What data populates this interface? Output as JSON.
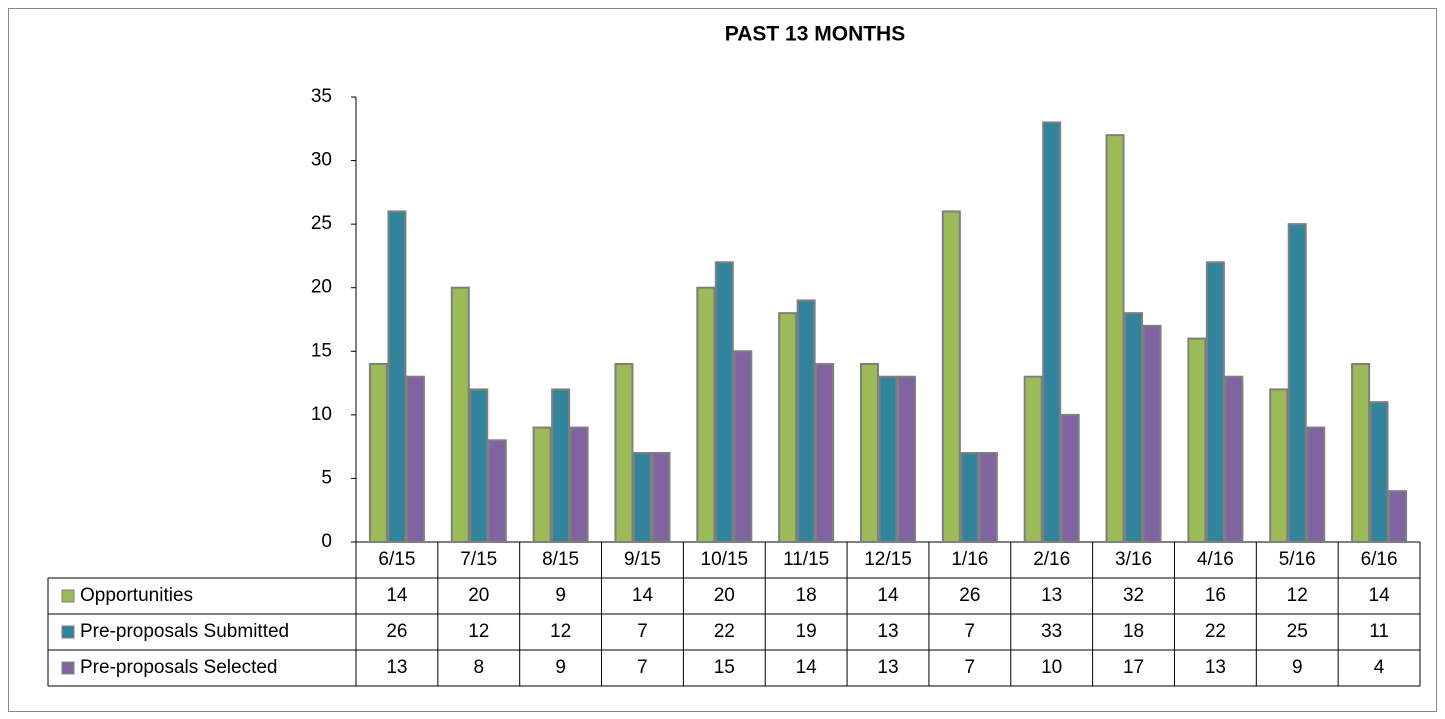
{
  "chart_data": {
    "type": "bar",
    "title": "PAST 13 MONTHS",
    "categories": [
      "6/15",
      "7/15",
      "8/15",
      "9/15",
      "10/15",
      "11/15",
      "12/15",
      "1/16",
      "2/16",
      "3/16",
      "4/16",
      "5/16",
      "6/16"
    ],
    "series": [
      {
        "name": "Opportunities",
        "color": "#9bbb59",
        "values": [
          14,
          20,
          9,
          14,
          20,
          18,
          14,
          26,
          13,
          32,
          16,
          12,
          14
        ]
      },
      {
        "name": "Pre-proposals Submitted",
        "color": "#31849b",
        "values": [
          26,
          12,
          12,
          7,
          22,
          19,
          13,
          7,
          33,
          18,
          22,
          25,
          11
        ]
      },
      {
        "name": "Pre-proposals Selected",
        "color": "#8064a2",
        "values": [
          13,
          8,
          9,
          7,
          15,
          14,
          13,
          7,
          10,
          17,
          13,
          9,
          4
        ]
      }
    ],
    "ylim": [
      0,
      35
    ],
    "yticks": [
      0,
      5,
      10,
      15,
      20,
      25,
      30,
      35
    ],
    "grid": false
  }
}
